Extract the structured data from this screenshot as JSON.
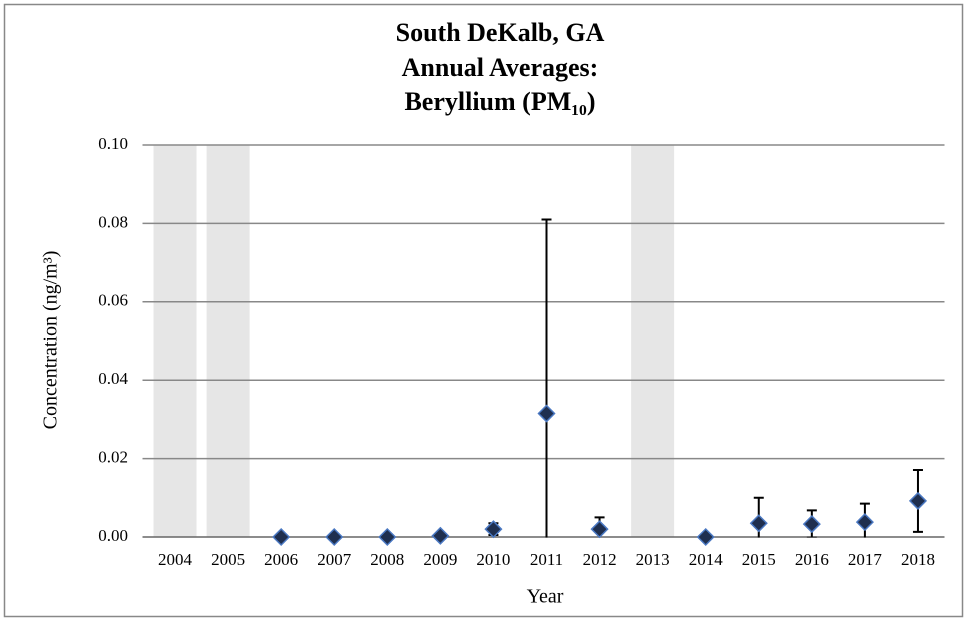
{
  "chart_data": {
    "type": "scatter",
    "title": [
      "South DeKalb, GA",
      "Annual Averages:",
      "Beryllium (PM₁₀)"
    ],
    "x_label": "Year",
    "y_label": "Concentration (ng/m³)",
    "categories": [
      "2004",
      "2005",
      "2006",
      "2007",
      "2008",
      "2009",
      "2010",
      "2011",
      "2012",
      "2013",
      "2014",
      "2015",
      "2016",
      "2017",
      "2018"
    ],
    "values": [
      null,
      null,
      0,
      0,
      0,
      0.0003,
      0.002,
      0.0315,
      0.002,
      null,
      0,
      0.0035,
      0.0033,
      0.0038,
      0.0092
    ],
    "errors": [
      null,
      null,
      0,
      0,
      0,
      0,
      0.0015,
      0.0495,
      0.003,
      null,
      0,
      0.0065,
      0.0035,
      0.0047,
      0.0079
    ],
    "no_data_categories": [
      "2004",
      "2005",
      "2013"
    ],
    "color": "#1f2f4f",
    "ylim": [
      0,
      0.1
    ],
    "yticks": [
      {
        "value": 0,
        "label": "0.00"
      },
      {
        "value": 0.02,
        "label": "0.02"
      },
      {
        "value": 0.04,
        "label": "0.04"
      },
      {
        "value": 0.06,
        "label": "0.06"
      },
      {
        "value": 0.08,
        "label": "0.08"
      },
      {
        "value": 0.1,
        "label": "0.10"
      }
    ],
    "grid": true
  }
}
